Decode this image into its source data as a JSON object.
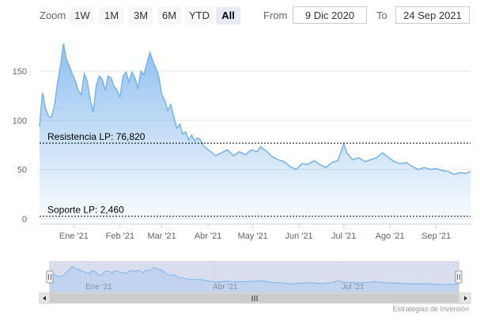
{
  "toolbar": {
    "zoom_label": "Zoom",
    "zoom_buttons": [
      "1W",
      "1M",
      "3M",
      "6M",
      "YTD",
      "All"
    ],
    "active_zoom": "All",
    "from_label": "From",
    "from_value": "9 Dic 2020",
    "to_label": "To",
    "to_value": "24 Sep 2021"
  },
  "credits": "Estrategias de Inversión",
  "colors": {
    "line": "#7cb5ec",
    "area_top": "#7cb5ec",
    "grid": "#e6e6e6",
    "plotline": "#000000"
  },
  "chart_data": {
    "type": "area",
    "ylim": [
      -5,
      187
    ],
    "yticks": [
      0,
      50,
      100,
      150
    ],
    "x_ticks": [
      {
        "label": "Ene '21",
        "date": "2021-01-01"
      },
      {
        "label": "Feb '21",
        "date": "2021-02-01"
      },
      {
        "label": "Mar '21",
        "date": "2021-03-01"
      },
      {
        "label": "Abr '21",
        "date": "2021-04-01"
      },
      {
        "label": "May '21",
        "date": "2021-05-01"
      },
      {
        "label": "Jun '21",
        "date": "2021-06-01"
      },
      {
        "label": "Jul '21",
        "date": "2021-07-01"
      },
      {
        "label": "Ago '21",
        "date": "2021-08-01"
      },
      {
        "label": "Sep '21",
        "date": "2021-09-01"
      }
    ],
    "navigator_ticks": [
      {
        "label": "Ene '21",
        "date": "2021-01-01"
      },
      {
        "label": "Abr '21",
        "date": "2021-04-01"
      },
      {
        "label": "Jul '21",
        "date": "2021-07-01"
      }
    ],
    "plot_lines": [
      {
        "label": "Resistencia LP: 76,820",
        "value": 76.82
      },
      {
        "label": "Soporte LP: 2,460",
        "value": 2.46
      }
    ],
    "range": {
      "start": "2020-12-09",
      "end": "2021-09-24"
    },
    "series": [
      {
        "points": [
          [
            "2020-12-09",
            94
          ],
          [
            "2020-12-11",
            128
          ],
          [
            "2020-12-13",
            112
          ],
          [
            "2020-12-15",
            104
          ],
          [
            "2020-12-17",
            103
          ],
          [
            "2020-12-19",
            115
          ],
          [
            "2020-12-21",
            137
          ],
          [
            "2020-12-23",
            155
          ],
          [
            "2020-12-25",
            178
          ],
          [
            "2020-12-27",
            162
          ],
          [
            "2020-12-29",
            155
          ],
          [
            "2020-12-31",
            147
          ],
          [
            "2021-01-02",
            140
          ],
          [
            "2021-01-04",
            130
          ],
          [
            "2021-01-06",
            126
          ],
          [
            "2021-01-08",
            147
          ],
          [
            "2021-01-10",
            140
          ],
          [
            "2021-01-12",
            121
          ],
          [
            "2021-01-14",
            108
          ],
          [
            "2021-01-16",
            135
          ],
          [
            "2021-01-18",
            145
          ],
          [
            "2021-01-20",
            142
          ],
          [
            "2021-01-22",
            130
          ],
          [
            "2021-01-24",
            145
          ],
          [
            "2021-01-26",
            143
          ],
          [
            "2021-01-28",
            134
          ],
          [
            "2021-01-30",
            131
          ],
          [
            "2021-02-01",
            123
          ],
          [
            "2021-02-03",
            145
          ],
          [
            "2021-02-05",
            149
          ],
          [
            "2021-02-07",
            139
          ],
          [
            "2021-02-09",
            149
          ],
          [
            "2021-02-11",
            143
          ],
          [
            "2021-02-13",
            132
          ],
          [
            "2021-02-15",
            150
          ],
          [
            "2021-02-17",
            146
          ],
          [
            "2021-02-19",
            158
          ],
          [
            "2021-02-21",
            169
          ],
          [
            "2021-02-23",
            160
          ],
          [
            "2021-02-25",
            153
          ],
          [
            "2021-02-27",
            144
          ],
          [
            "2021-03-01",
            126
          ],
          [
            "2021-03-03",
            120
          ],
          [
            "2021-03-05",
            110
          ],
          [
            "2021-03-07",
            116
          ],
          [
            "2021-03-09",
            104
          ],
          [
            "2021-03-11",
            92
          ],
          [
            "2021-03-13",
            96
          ],
          [
            "2021-03-15",
            86
          ],
          [
            "2021-03-17",
            88
          ],
          [
            "2021-03-19",
            80
          ],
          [
            "2021-03-21",
            85
          ],
          [
            "2021-03-23",
            79
          ],
          [
            "2021-03-25",
            82
          ],
          [
            "2021-03-27",
            80
          ],
          [
            "2021-03-29",
            74
          ],
          [
            "2021-04-02",
            69
          ],
          [
            "2021-04-06",
            64
          ],
          [
            "2021-04-10",
            67
          ],
          [
            "2021-04-14",
            70
          ],
          [
            "2021-04-18",
            64
          ],
          [
            "2021-04-22",
            68
          ],
          [
            "2021-04-26",
            65
          ],
          [
            "2021-04-30",
            70
          ],
          [
            "2021-05-04",
            68
          ],
          [
            "2021-05-06",
            73
          ],
          [
            "2021-05-10",
            69
          ],
          [
            "2021-05-14",
            63
          ],
          [
            "2021-05-18",
            60
          ],
          [
            "2021-05-22",
            58
          ],
          [
            "2021-05-26",
            53
          ],
          [
            "2021-05-30",
            50
          ],
          [
            "2021-06-03",
            56
          ],
          [
            "2021-06-07",
            55
          ],
          [
            "2021-06-11",
            59
          ],
          [
            "2021-06-15",
            55
          ],
          [
            "2021-06-19",
            52
          ],
          [
            "2021-06-23",
            57
          ],
          [
            "2021-06-27",
            59
          ],
          [
            "2021-07-01",
            76
          ],
          [
            "2021-07-03",
            67
          ],
          [
            "2021-07-07",
            60
          ],
          [
            "2021-07-11",
            62
          ],
          [
            "2021-07-15",
            58
          ],
          [
            "2021-07-19",
            60
          ],
          [
            "2021-07-23",
            62
          ],
          [
            "2021-07-27",
            67
          ],
          [
            "2021-07-31",
            62
          ],
          [
            "2021-08-04",
            58
          ],
          [
            "2021-08-08",
            56
          ],
          [
            "2021-08-12",
            57
          ],
          [
            "2021-08-16",
            53
          ],
          [
            "2021-08-20",
            50
          ],
          [
            "2021-08-24",
            52
          ],
          [
            "2021-08-28",
            50
          ],
          [
            "2021-09-01",
            51
          ],
          [
            "2021-09-05",
            49
          ],
          [
            "2021-09-09",
            48
          ],
          [
            "2021-09-13",
            45
          ],
          [
            "2021-09-17",
            47
          ],
          [
            "2021-09-21",
            46
          ],
          [
            "2021-09-24",
            48
          ]
        ]
      }
    ]
  }
}
